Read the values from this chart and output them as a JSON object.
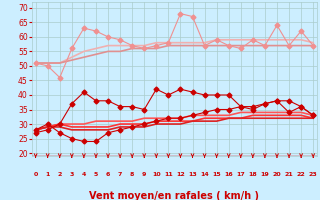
{
  "bg_color": "#cceeff",
  "grid_color": "#aacccc",
  "xlabel": "Vent moyen/en rafales ( km/h )",
  "xlabel_color": "#cc0000",
  "xlabel_fontsize": 7,
  "tick_color": "#cc0000",
  "yticks": [
    20,
    25,
    30,
    35,
    40,
    45,
    50,
    55,
    60,
    65,
    70
  ],
  "xticks": [
    0,
    1,
    2,
    3,
    4,
    5,
    6,
    7,
    8,
    9,
    10,
    11,
    12,
    13,
    14,
    15,
    16,
    17,
    18,
    19,
    20,
    21,
    22,
    23
  ],
  "ylim": [
    19,
    72
  ],
  "xlim": [
    -0.3,
    23.3
  ],
  "lines": [
    {
      "x": [
        0,
        1,
        2,
        3,
        4,
        5,
        6,
        7,
        8,
        9,
        10,
        11,
        12,
        13,
        14,
        15,
        16,
        17,
        18,
        19,
        20,
        21,
        22,
        23
      ],
      "y": [
        51,
        50,
        46,
        56,
        63,
        62,
        60,
        59,
        57,
        56,
        57,
        58,
        68,
        67,
        57,
        59,
        57,
        56,
        59,
        57,
        64,
        57,
        62,
        57
      ],
      "color": "#f09090",
      "lw": 0.8,
      "marker": "D",
      "ms": 2.5,
      "zorder": 4
    },
    {
      "x": [
        0,
        1,
        2,
        3,
        4,
        5,
        6,
        7,
        8,
        9,
        10,
        11,
        12,
        13,
        14,
        15,
        16,
        17,
        18,
        19,
        20,
        21,
        22,
        23
      ],
      "y": [
        51,
        51,
        51,
        53,
        55,
        56,
        57,
        57,
        57,
        57,
        58,
        58,
        58,
        58,
        58,
        59,
        59,
        59,
        59,
        59,
        59,
        59,
        59,
        58
      ],
      "color": "#f0b0b0",
      "lw": 1.2,
      "marker": null,
      "ms": 0,
      "zorder": 2
    },
    {
      "x": [
        0,
        1,
        2,
        3,
        4,
        5,
        6,
        7,
        8,
        9,
        10,
        11,
        12,
        13,
        14,
        15,
        16,
        17,
        18,
        19,
        20,
        21,
        22,
        23
      ],
      "y": [
        51,
        51,
        51,
        52,
        53,
        54,
        55,
        55,
        56,
        56,
        56,
        57,
        57,
        57,
        57,
        57,
        57,
        57,
        57,
        57,
        57,
        57,
        57,
        57
      ],
      "color": "#e09090",
      "lw": 1.2,
      "marker": null,
      "ms": 0,
      "zorder": 2
    },
    {
      "x": [
        0,
        1,
        2,
        3,
        4,
        5,
        6,
        7,
        8,
        9,
        10,
        11,
        12,
        13,
        14,
        15,
        16,
        17,
        18,
        19,
        20,
        21,
        22,
        23
      ],
      "y": [
        28,
        30,
        27,
        25,
        24,
        24,
        27,
        28,
        29,
        30,
        31,
        32,
        32,
        33,
        34,
        35,
        35,
        36,
        36,
        37,
        38,
        38,
        36,
        33
      ],
      "color": "#cc0000",
      "lw": 0.8,
      "marker": "D",
      "ms": 2.5,
      "zorder": 4
    },
    {
      "x": [
        0,
        1,
        2,
        3,
        4,
        5,
        6,
        7,
        8,
        9,
        10,
        11,
        12,
        13,
        14,
        15,
        16,
        17,
        18,
        19,
        20,
        21,
        22,
        23
      ],
      "y": [
        27,
        28,
        30,
        37,
        41,
        38,
        38,
        36,
        36,
        35,
        42,
        40,
        42,
        41,
        40,
        40,
        40,
        36,
        35,
        37,
        38,
        34,
        36,
        33
      ],
      "color": "#cc0000",
      "lw": 0.8,
      "marker": "D",
      "ms": 2.5,
      "zorder": 4
    },
    {
      "x": [
        0,
        1,
        2,
        3,
        4,
        5,
        6,
        7,
        8,
        9,
        10,
        11,
        12,
        13,
        14,
        15,
        16,
        17,
        18,
        19,
        20,
        21,
        22,
        23
      ],
      "y": [
        28,
        29,
        30,
        30,
        30,
        31,
        31,
        31,
        31,
        32,
        32,
        32,
        32,
        33,
        33,
        33,
        33,
        34,
        34,
        34,
        34,
        34,
        34,
        33
      ],
      "color": "#ff5555",
      "lw": 1.2,
      "marker": null,
      "ms": 0,
      "zorder": 2
    },
    {
      "x": [
        0,
        1,
        2,
        3,
        4,
        5,
        6,
        7,
        8,
        9,
        10,
        11,
        12,
        13,
        14,
        15,
        16,
        17,
        18,
        19,
        20,
        21,
        22,
        23
      ],
      "y": [
        28,
        29,
        30,
        29,
        29,
        29,
        29,
        30,
        30,
        30,
        31,
        31,
        31,
        31,
        32,
        32,
        32,
        32,
        33,
        33,
        33,
        33,
        33,
        32
      ],
      "color": "#ff3333",
      "lw": 1.2,
      "marker": null,
      "ms": 0,
      "zorder": 2
    },
    {
      "x": [
        0,
        1,
        2,
        3,
        4,
        5,
        6,
        7,
        8,
        9,
        10,
        11,
        12,
        13,
        14,
        15,
        16,
        17,
        18,
        19,
        20,
        21,
        22,
        23
      ],
      "y": [
        28,
        29,
        29,
        28,
        28,
        28,
        28,
        29,
        29,
        29,
        30,
        30,
        30,
        31,
        31,
        31,
        32,
        32,
        32,
        32,
        32,
        32,
        32,
        32
      ],
      "color": "#dd2222",
      "lw": 1.2,
      "marker": null,
      "ms": 0,
      "zorder": 2
    }
  ],
  "arrow_color": "#cc0000"
}
